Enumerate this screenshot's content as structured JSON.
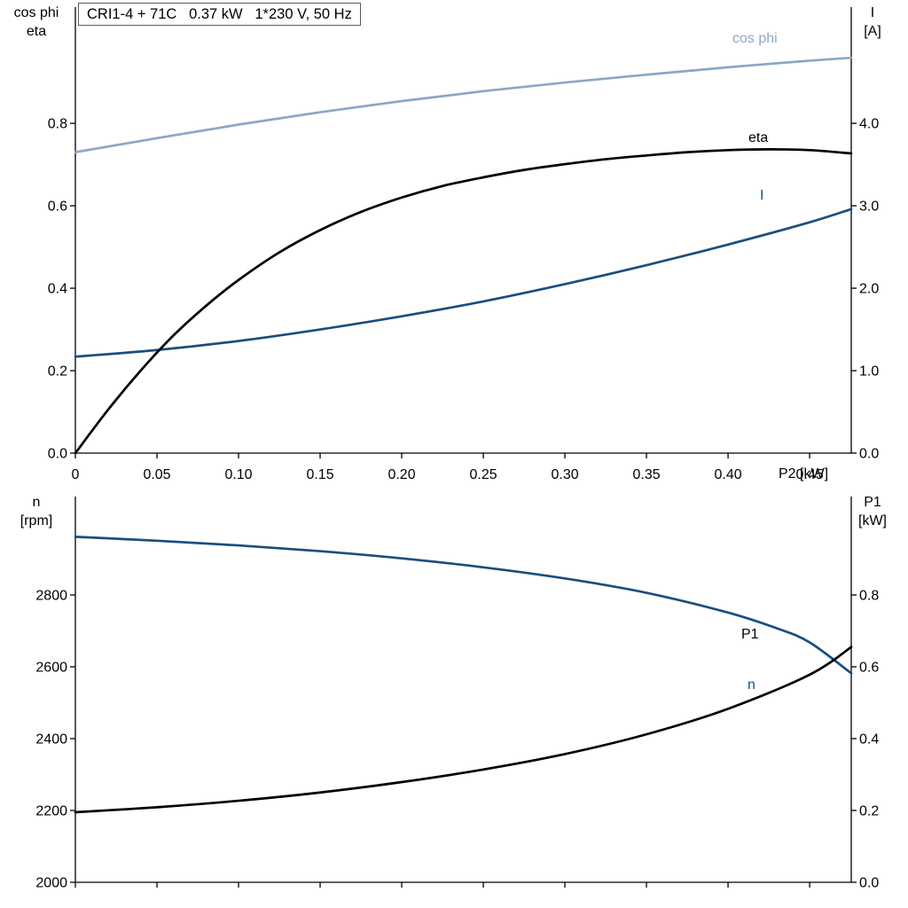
{
  "title_box": {
    "text": "CRI1-4 + 71C   0.37 kW   1*230 V, 50 Hz"
  },
  "chart_data": [
    {
      "type": "line",
      "name": "motor-electrical-performance",
      "title": "CRI1-4 + 71C   0.37 kW   1*230 V, 50 Hz",
      "x_axis": {
        "label": "P2 [kW]",
        "min": 0,
        "max": 0.4755,
        "ticks": [
          0,
          0.05,
          0.1,
          0.15,
          0.2,
          0.25,
          0.3,
          0.35,
          0.4,
          0.45
        ],
        "tick_labels": [
          "0",
          "0.05",
          "0.10",
          "0.15",
          "0.20",
          "0.25",
          "0.30",
          "0.35",
          "0.40",
          "0.45"
        ]
      },
      "y_left": {
        "label_lines": [
          "cos phi",
          "eta"
        ],
        "min": 0,
        "max": 1.082,
        "ticks": [
          0.0,
          0.2,
          0.4,
          0.6,
          0.8
        ],
        "tick_labels": [
          "0.0",
          "0.2",
          "0.4",
          "0.6",
          "0.8"
        ]
      },
      "y_right": {
        "label_lines": [
          "I",
          "[A]"
        ],
        "min": 0,
        "max": 5.41,
        "ticks": [
          0.0,
          1.0,
          2.0,
          3.0,
          4.0
        ],
        "tick_labels": [
          "0.0",
          "1.0",
          "2.0",
          "3.0",
          "4.0"
        ]
      },
      "series": [
        {
          "name": "cos phi",
          "axis": "left",
          "color": "#8ba7c7",
          "points": [
            [
              0,
              0.73
            ],
            [
              0.05,
              0.764
            ],
            [
              0.1,
              0.797
            ],
            [
              0.15,
              0.827
            ],
            [
              0.2,
              0.854
            ],
            [
              0.25,
              0.878
            ],
            [
              0.3,
              0.899
            ],
            [
              0.35,
              0.918
            ],
            [
              0.4,
              0.936
            ],
            [
              0.45,
              0.952
            ],
            [
              0.4755,
              0.959
            ]
          ]
        },
        {
          "name": "I",
          "axis": "right",
          "color": "#1a4e7e",
          "points": [
            [
              0,
              1.17
            ],
            [
              0.05,
              1.25
            ],
            [
              0.1,
              1.36
            ],
            [
              0.15,
              1.5
            ],
            [
              0.2,
              1.66
            ],
            [
              0.25,
              1.84
            ],
            [
              0.3,
              2.05
            ],
            [
              0.35,
              2.28
            ],
            [
              0.4,
              2.53
            ],
            [
              0.45,
              2.8
            ],
            [
              0.4755,
              2.96
            ]
          ]
        },
        {
          "name": "eta",
          "axis": "left",
          "color": "#000000",
          "points": [
            [
              0,
              0
            ],
            [
              0.02,
              0.105
            ],
            [
              0.04,
              0.2
            ],
            [
              0.06,
              0.285
            ],
            [
              0.08,
              0.357
            ],
            [
              0.1,
              0.42
            ],
            [
              0.125,
              0.487
            ],
            [
              0.15,
              0.541
            ],
            [
              0.175,
              0.585
            ],
            [
              0.2,
              0.62
            ],
            [
              0.225,
              0.648
            ],
            [
              0.25,
              0.669
            ],
            [
              0.275,
              0.687
            ],
            [
              0.3,
              0.701
            ],
            [
              0.325,
              0.713
            ],
            [
              0.35,
              0.722
            ],
            [
              0.375,
              0.73
            ],
            [
              0.4,
              0.735
            ],
            [
              0.425,
              0.737
            ],
            [
              0.45,
              0.735
            ],
            [
              0.4755,
              0.727
            ]
          ]
        }
      ]
    },
    {
      "type": "line",
      "name": "speed-and-input-power",
      "x_axis": {
        "label": "",
        "min": 0,
        "max": 0.4755,
        "ticks": [
          0,
          0.05,
          0.1,
          0.15,
          0.2,
          0.25,
          0.3,
          0.35,
          0.4,
          0.45
        ],
        "tick_labels": []
      },
      "y_left": {
        "label_lines": [
          "n",
          "[rpm]"
        ],
        "min": 2000,
        "max": 3074,
        "ticks": [
          2000,
          2200,
          2400,
          2600,
          2800
        ],
        "tick_labels": [
          "2000",
          "2200",
          "2400",
          "2600",
          "2800"
        ]
      },
      "y_right": {
        "label_lines": [
          "P1",
          "[kW]"
        ],
        "min": 0,
        "max": 1.074,
        "ticks": [
          0.0,
          0.2,
          0.4,
          0.6,
          0.8
        ],
        "tick_labels": [
          "0.0",
          "0.2",
          "0.4",
          "0.6",
          "0.8"
        ]
      },
      "series": [
        {
          "name": "n",
          "axis": "left",
          "color": "#1a4e7e",
          "points": [
            [
              0,
              2962
            ],
            [
              0.05,
              2951
            ],
            [
              0.1,
              2938
            ],
            [
              0.15,
              2922
            ],
            [
              0.2,
              2902
            ],
            [
              0.25,
              2877
            ],
            [
              0.3,
              2846
            ],
            [
              0.35,
              2806
            ],
            [
              0.4,
              2751
            ],
            [
              0.43,
              2707
            ],
            [
              0.45,
              2668
            ],
            [
              0.4755,
              2582
            ]
          ]
        },
        {
          "name": "P1",
          "axis": "right",
          "color": "#000000",
          "points": [
            [
              0,
              0.195
            ],
            [
              0.05,
              0.209
            ],
            [
              0.1,
              0.227
            ],
            [
              0.15,
              0.25
            ],
            [
              0.2,
              0.279
            ],
            [
              0.25,
              0.314
            ],
            [
              0.3,
              0.357
            ],
            [
              0.35,
              0.412
            ],
            [
              0.4,
              0.483
            ],
            [
              0.45,
              0.578
            ],
            [
              0.4755,
              0.655
            ]
          ]
        }
      ]
    }
  ]
}
